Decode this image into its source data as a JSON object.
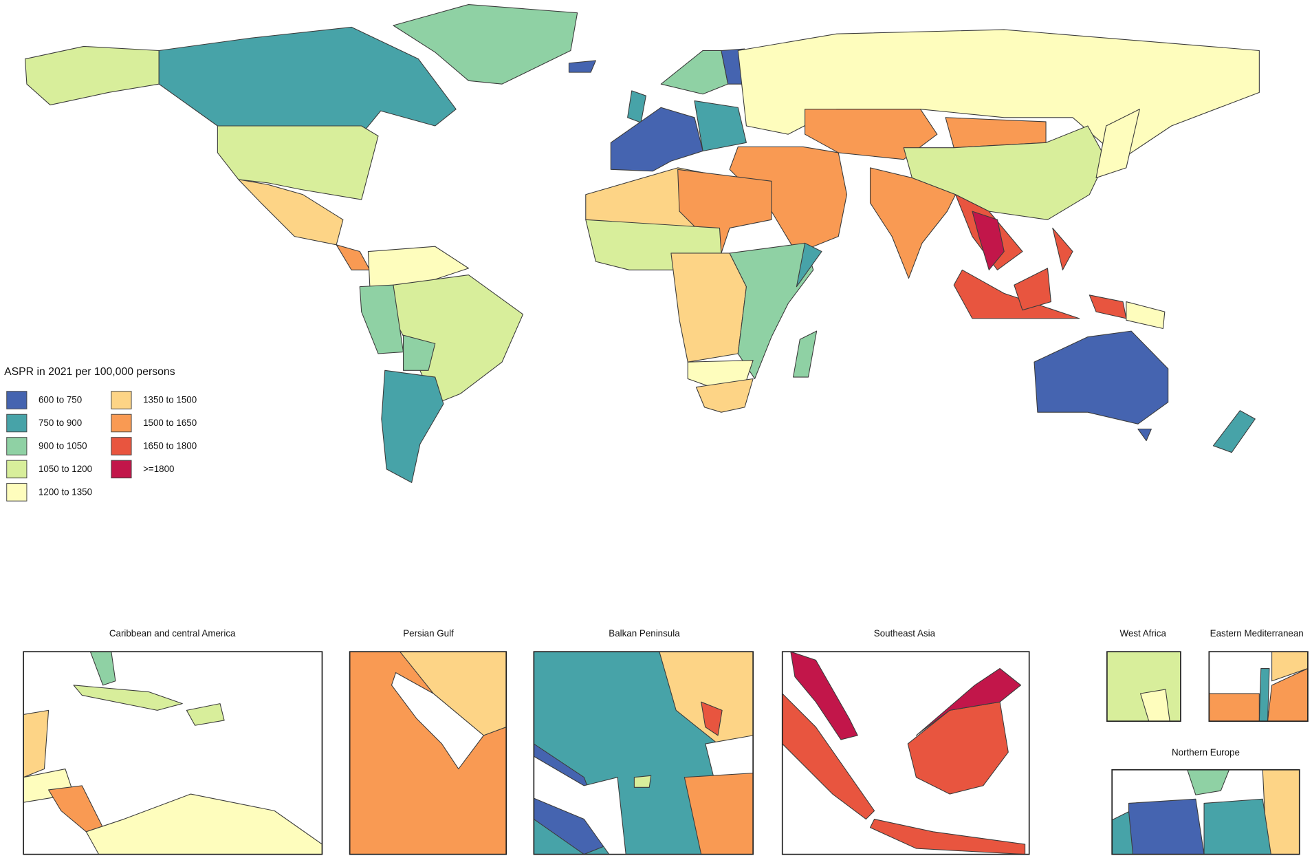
{
  "legend": {
    "title": "ASPR in 2021 per 100,000 persons",
    "items": [
      {
        "label": "600 to 750",
        "color": "#4564b0"
      },
      {
        "label": "750 to 900",
        "color": "#47a3a8"
      },
      {
        "label": "900 to 1050",
        "color": "#8fd1a4"
      },
      {
        "label": "1050 to 1200",
        "color": "#d8ee9b"
      },
      {
        "label": "1200 to 1350",
        "color": "#fefdbd"
      },
      {
        "label": "1350 to 1500",
        "color": "#fdd486"
      },
      {
        "label": "1500 to 1650",
        "color": "#f99a53"
      },
      {
        "label": "1650 to 1800",
        "color": "#e8553f"
      },
      {
        "label": ">=1800",
        "color": "#c2164a"
      }
    ]
  },
  "insets": [
    {
      "title": "Caribbean and central America"
    },
    {
      "title": "Persian Gulf"
    },
    {
      "title": "Balkan Peninsula"
    },
    {
      "title": "Southeast Asia"
    },
    {
      "title": "West Africa"
    },
    {
      "title": "Eastern Mediterranean"
    },
    {
      "title": "Northern Europe"
    }
  ]
}
